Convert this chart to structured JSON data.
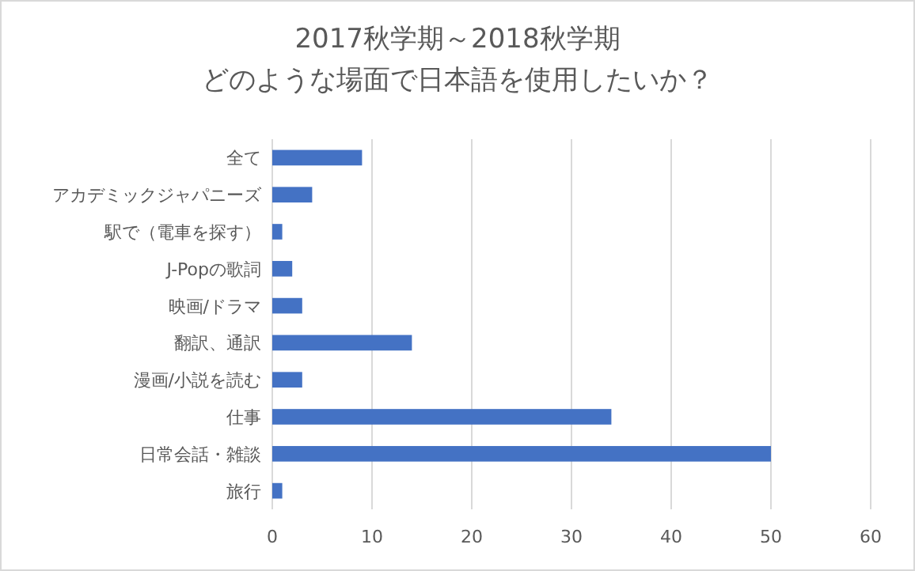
{
  "chart_data": {
    "type": "bar",
    "orientation": "horizontal",
    "title": "2017秋学期～2018秋学期",
    "subtitle": "どのような場面で日本語を使用したいか？",
    "categories": [
      "全て",
      "アカデミックジャパニーズ",
      "駅で（電車を探す）",
      "J-Popの歌詞",
      "映画/ドラマ",
      "翻訳、通訳",
      "漫画/小説を読む",
      "仕事",
      "日常会話・雑談",
      "旅行"
    ],
    "values": [
      9,
      4,
      1,
      2,
      3,
      14,
      3,
      34,
      50,
      1
    ],
    "color": "#4472c4",
    "xlim": [
      0,
      60
    ],
    "xticks": [
      0,
      10,
      20,
      30,
      40,
      50,
      60
    ],
    "grid": "x"
  }
}
